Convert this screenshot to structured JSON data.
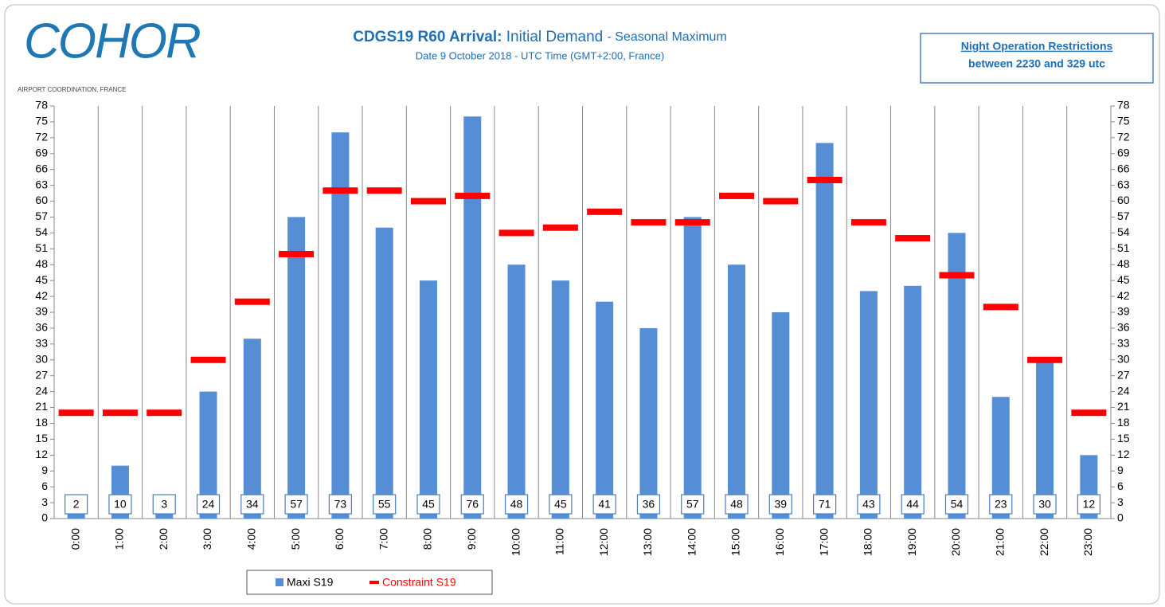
{
  "logo": {
    "name": "COHOR",
    "caption": "AIRPORT COORDINATION, FRANCE"
  },
  "note": {
    "title": "Night Operation Restrictions",
    "text": "between 2230 and 329 utc"
  },
  "chart_data": {
    "type": "bar",
    "title": {
      "bold": "CDGS19 R60 Arrival:",
      "main": "Initial Demand",
      "suffix": "- Seasonal Maximum"
    },
    "subtitle": "Date 9 October 2018 - UTC Time (GMT+2:00, France)",
    "categories": [
      "0:00",
      "1:00",
      "2:00",
      "3:00",
      "4:00",
      "5:00",
      "6:00",
      "7:00",
      "8:00",
      "9:00",
      "10:00",
      "11:00",
      "12:00",
      "13:00",
      "14:00",
      "15:00",
      "16:00",
      "17:00",
      "18:00",
      "19:00",
      "20:00",
      "21:00",
      "22:00",
      "23:00"
    ],
    "series": [
      {
        "name": "Maxi S19",
        "type": "bar",
        "color": "#558ed5",
        "values": [
          2,
          10,
          3,
          24,
          34,
          57,
          73,
          55,
          45,
          76,
          48,
          45,
          41,
          36,
          57,
          48,
          39,
          71,
          43,
          44,
          54,
          23,
          30,
          12
        ]
      },
      {
        "name": "Constraint S19",
        "type": "dash",
        "color": "#ff0000",
        "values": [
          20,
          20,
          20,
          30,
          41,
          50,
          62,
          62,
          60,
          61,
          54,
          55,
          58,
          56,
          56,
          61,
          60,
          64,
          56,
          53,
          46,
          40,
          30,
          20
        ]
      }
    ],
    "ylim": [
      0,
      78
    ],
    "yticks": [
      0,
      3,
      6,
      9,
      12,
      15,
      18,
      21,
      24,
      27,
      30,
      33,
      36,
      39,
      42,
      45,
      48,
      51,
      54,
      57,
      60,
      63,
      66,
      69,
      72,
      75,
      78
    ],
    "grid": false
  }
}
